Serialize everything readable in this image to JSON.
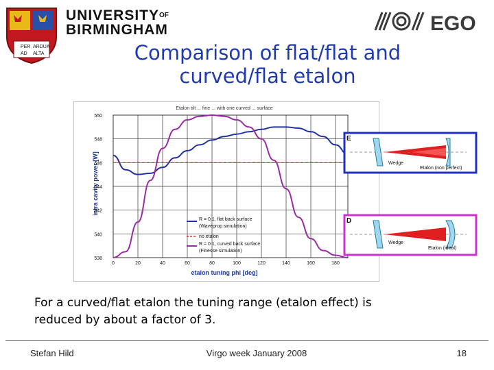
{
  "header": {
    "university_line1": "UNIVERSITY",
    "university_of": "OF",
    "university_line2": "BIRMINGHAM",
    "crest_motto": [
      "PER",
      "ARDUA",
      "AD",
      "ALTA"
    ],
    "ego_text": "EGO"
  },
  "slide": {
    "title_line1": "Comparison of flat/flat and",
    "title_line2": "curved/flat etalon",
    "caption_line1": "For a curved/flat etalon the tuning range (etalon effect) is",
    "caption_line2": "reduced by about a factor of 3."
  },
  "footer": {
    "author": "Stefan Hild",
    "event": "Virgo week January 2008",
    "page": "18"
  },
  "chart_data": {
    "type": "line",
    "title": "Etalon tilt ... fine ... with one curved ... surface",
    "xlabel": "etalon tuning phi [deg]",
    "ylabel": "intra cavity power [W]",
    "xlim": [
      0,
      190
    ],
    "ylim": [
      538,
      550
    ],
    "x_ticks": [
      0,
      20,
      40,
      60,
      80,
      100,
      120,
      140,
      160,
      180
    ],
    "y_ticks": [
      538,
      540,
      542,
      544,
      546,
      548,
      550
    ],
    "grid": true,
    "legend_position": "bottom-center",
    "series": [
      {
        "name": "R = 0.1, flat back surface (Waveprop simulation)",
        "color": "#2030a0",
        "x": [
          0,
          10,
          20,
          30,
          40,
          50,
          60,
          70,
          80,
          90,
          100,
          110,
          120,
          130,
          140,
          150,
          160,
          170,
          180,
          190
        ],
        "y": [
          546.6,
          545.4,
          545.0,
          545.1,
          545.6,
          546.4,
          547.0,
          547.5,
          547.9,
          548.2,
          548.4,
          548.6,
          548.8,
          549.0,
          549.0,
          548.9,
          548.6,
          548.2,
          547.5,
          546.7
        ]
      },
      {
        "name": "no etalon",
        "color": "#cc3333",
        "dashed": true,
        "x": [
          0,
          190
        ],
        "y": [
          546.0,
          546.0
        ]
      },
      {
        "name": "R = 0.1, curved back surface (Finesse simulation)",
        "color": "#9a2aa0",
        "x": [
          0,
          10,
          20,
          30,
          40,
          50,
          60,
          70,
          80,
          90,
          100,
          110,
          120,
          130,
          140,
          150,
          160,
          170,
          180,
          190
        ],
        "y": [
          538.0,
          538.5,
          541.0,
          544.5,
          547.2,
          548.8,
          549.6,
          549.9,
          550.0,
          549.9,
          549.6,
          549.0,
          548.0,
          546.2,
          543.8,
          541.4,
          539.6,
          538.6,
          538.2,
          538.0
        ]
      }
    ],
    "insets": [
      {
        "marker": "E",
        "labels": [
          "Wedge",
          "Etalon (non perfect)"
        ],
        "frame_color": "#2030c0"
      },
      {
        "marker": "D",
        "labels": [
          "Wedge",
          "Etalon (ideal)"
        ],
        "frame_color": "#cc33cc"
      }
    ]
  }
}
